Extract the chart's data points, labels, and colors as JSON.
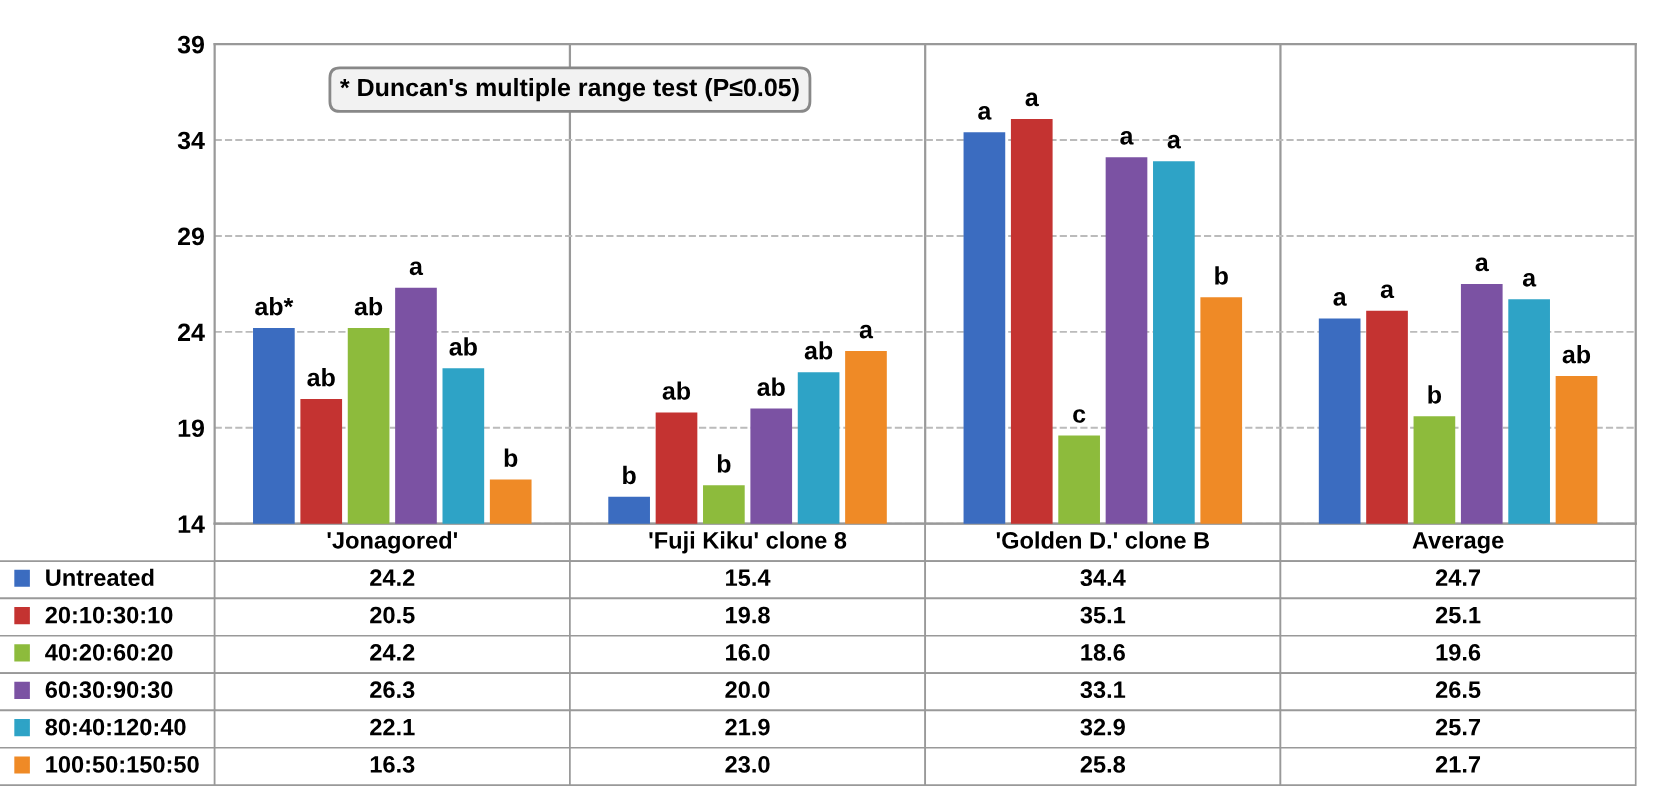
{
  "chart_data": {
    "type": "bar",
    "categories": [
      "'Jonagored'",
      "'Fuji Kiku' clone 8",
      "'Golden D.' clone B",
      "Average"
    ],
    "series": [
      {
        "name": "Untreated",
        "color": "#3b6cc0",
        "values": [
          24.2,
          15.4,
          34.4,
          24.7
        ],
        "value_labels": [
          "24.2",
          "15.4",
          "34.4",
          "24.7"
        ]
      },
      {
        "name": "20:10:30:10",
        "color": "#c43331",
        "values": [
          20.5,
          19.8,
          35.1,
          25.1
        ],
        "value_labels": [
          "20.5",
          "19.8",
          "35.1",
          "25.1"
        ]
      },
      {
        "name": "40:20:60:20",
        "color": "#8dbb3c",
        "values": [
          24.2,
          16.0,
          18.6,
          19.6
        ],
        "value_labels": [
          "24.2",
          "16.0",
          "18.6",
          "19.6"
        ]
      },
      {
        "name": "60:30:90:30",
        "color": "#7b52a3",
        "values": [
          26.3,
          20.0,
          33.1,
          26.5
        ],
        "value_labels": [
          "26.3",
          "20.0",
          "33.1",
          "26.5"
        ]
      },
      {
        "name": "80:40:120:40",
        "color": "#2ea3c6",
        "values": [
          22.1,
          21.9,
          32.9,
          25.7
        ],
        "value_labels": [
          "22.1",
          "21.9",
          "32.9",
          "25.7"
        ]
      },
      {
        "name": "100:50:150:50",
        "color": "#ef8a26",
        "values": [
          16.3,
          23.0,
          25.8,
          21.7
        ],
        "value_labels": [
          "16.3",
          "23.0",
          "25.8",
          "21.7"
        ]
      }
    ],
    "ylim": [
      14,
      39
    ],
    "yticks": [
      14,
      19,
      24,
      29,
      34,
      39
    ],
    "grid": "y",
    "legend": "bottom",
    "annotations": [
      "* Duncan's multiple range test (P≤0.05)",
      "ab*",
      "ab",
      "ab",
      "a",
      "ab",
      "b",
      "b",
      "ab",
      "b",
      "ab",
      "ab",
      "a",
      "a",
      "a",
      "c",
      "a",
      "a",
      "b",
      "a",
      "a",
      "b",
      "a",
      "a",
      "ab"
    ]
  }
}
